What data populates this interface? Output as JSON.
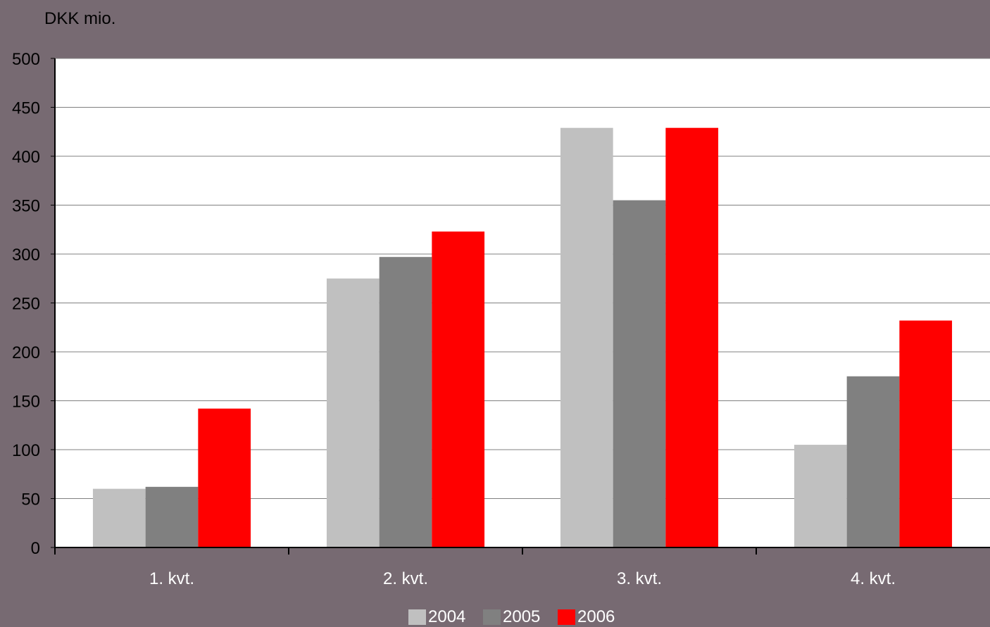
{
  "chart_data": {
    "type": "bar",
    "ylabel": "DKK mio.",
    "categories": [
      "1. kvt.",
      "2. kvt.",
      "3. kvt.",
      "4. kvt."
    ],
    "series": [
      {
        "name": "2004",
        "color": "#c0c0c0",
        "values": [
          60,
          275,
          429,
          105
        ]
      },
      {
        "name": "2005",
        "color": "#808080",
        "values": [
          62,
          297,
          355,
          175
        ]
      },
      {
        "name": "2006",
        "color": "#ff0000",
        "values": [
          142,
          323,
          429,
          232
        ]
      }
    ],
    "ylim": [
      0,
      500
    ],
    "yticks": [
      "0",
      "50",
      "100",
      "150",
      "200",
      "250",
      "300",
      "350",
      "400",
      "450",
      "500"
    ],
    "grid": true,
    "legend": "bottom-center"
  }
}
